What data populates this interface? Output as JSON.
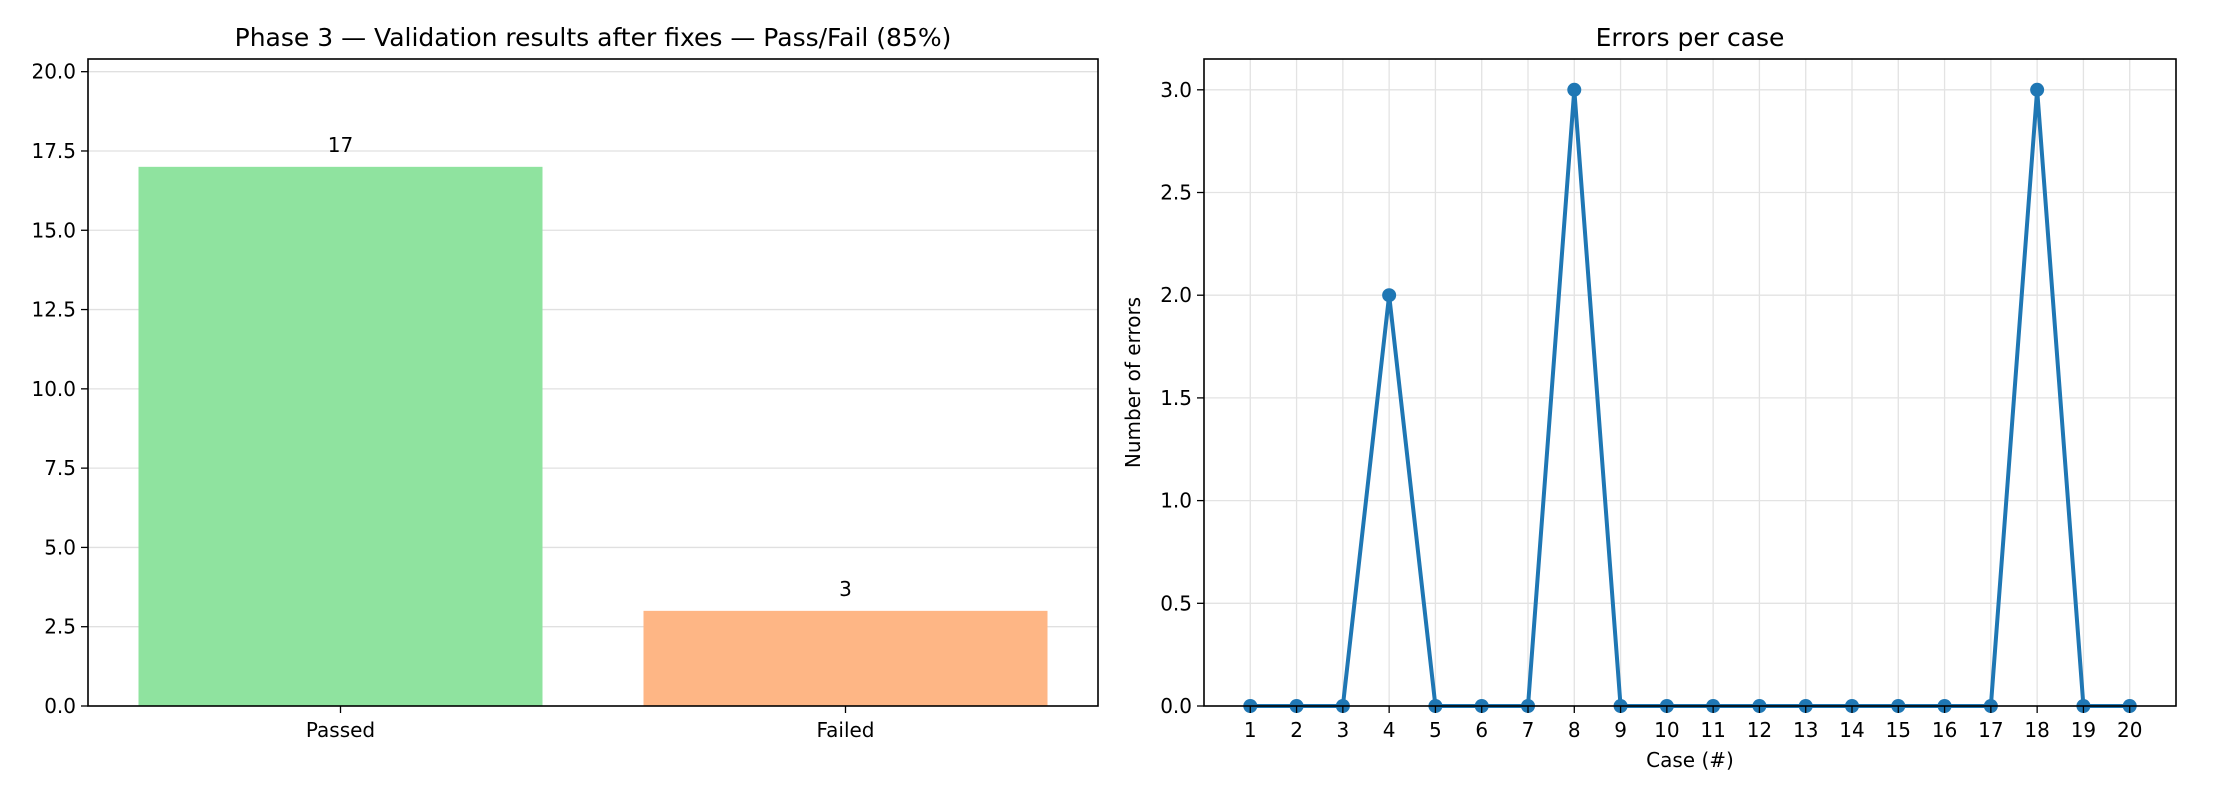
{
  "chart_data": [
    {
      "type": "bar",
      "title": "Phase 3 — Validation results after fixes — Pass/Fail (85%)",
      "xlabel": "",
      "ylabel": "",
      "categories": [
        "Passed",
        "Failed"
      ],
      "values": [
        17,
        3
      ],
      "data_labels": [
        "17",
        "3"
      ],
      "colors": [
        "#8fe39f",
        "#feb685"
      ],
      "ylim": [
        0,
        20.4
      ],
      "yticks": [
        0,
        2.5,
        5,
        7.5,
        10,
        12.5,
        15,
        17.5,
        20
      ],
      "ytick_labels": [
        "0.0",
        "2.5",
        "5.0",
        "7.5",
        "10.0",
        "12.5",
        "15.0",
        "17.5",
        "20.0"
      ],
      "grid": "y"
    },
    {
      "type": "line",
      "title": "Errors per case",
      "xlabel": "Case (#)",
      "ylabel": "Number of errors",
      "x": [
        1,
        2,
        3,
        4,
        5,
        6,
        7,
        8,
        9,
        10,
        11,
        12,
        13,
        14,
        15,
        16,
        17,
        18,
        19,
        20
      ],
      "x_labels": [
        "1",
        "2",
        "3",
        "4",
        "5",
        "6",
        "7",
        "8",
        "9",
        "10",
        "11",
        "12",
        "13",
        "14",
        "15",
        "16",
        "17",
        "18",
        "19",
        "20"
      ],
      "series": [
        {
          "values": [
            0,
            0,
            0,
            2,
            0,
            0,
            0,
            3,
            0,
            0,
            0,
            0,
            0,
            0,
            0,
            0,
            0,
            3,
            0,
            0
          ],
          "color": "#1f77b4"
        }
      ],
      "xlim": [
        0,
        21
      ],
      "ylim": [
        0,
        3.15
      ],
      "yticks": [
        0,
        0.5,
        1,
        1.5,
        2,
        2.5,
        3
      ],
      "ytick_labels": [
        "0.0",
        "0.5",
        "1.0",
        "1.5",
        "2.0",
        "2.5",
        "3.0"
      ],
      "grid": "both"
    }
  ]
}
